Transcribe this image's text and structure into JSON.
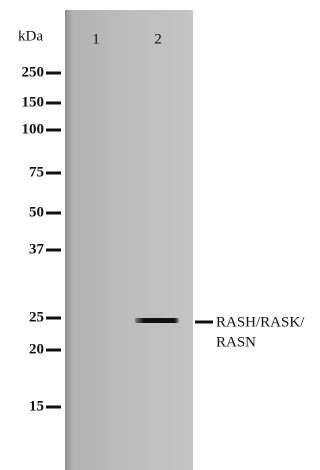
{
  "kda_label": "kDa",
  "markers": [
    "250",
    "150",
    "100",
    "75",
    "50",
    "37",
    "25",
    "20",
    "15"
  ],
  "lanes": [
    "1",
    "2"
  ],
  "band_label": [
    "RASH/RASK/",
    "RASN"
  ]
}
